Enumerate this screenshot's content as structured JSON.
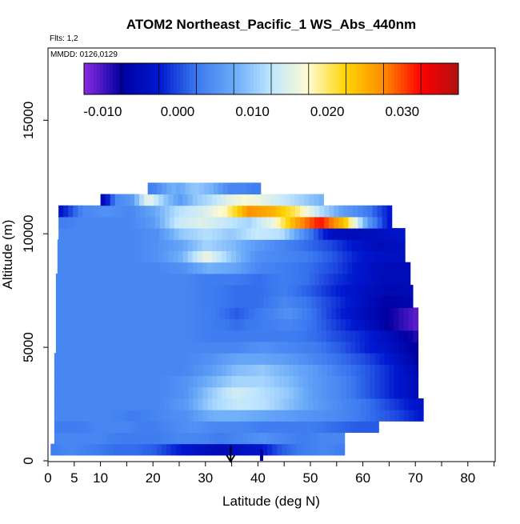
{
  "chart_data": {
    "type": "heatmap",
    "title": "ATOM2 Northeast_Pacific_1 WS_Abs_440nm",
    "flights_label": "Flts: 1,2",
    "dates_label": "MMDD: 0126,0129",
    "xlabel": "Latitude (deg N)",
    "ylabel": "Altitude (m)",
    "xlim": [
      0,
      85
    ],
    "ylim": [
      0,
      18000
    ],
    "x_ticks": [
      0,
      5,
      10,
      20,
      30,
      40,
      50,
      60,
      70,
      80
    ],
    "y_ticks": [
      0,
      5000,
      10000,
      15000
    ],
    "colorbar": {
      "range": [
        -0.0125,
        0.0375
      ],
      "ticks": [
        -0.01,
        0.0,
        0.01,
        0.02,
        0.03
      ],
      "tick_labels": [
        "-0.010",
        "0.000",
        "0.010",
        "0.020",
        "0.030"
      ],
      "colors": [
        "#8a2be2",
        "#0000a0",
        "#0018d0",
        "#3a78f0",
        "#6aaaf8",
        "#bfe6ff",
        "#fffbd0",
        "#ffd400",
        "#ff8c00",
        "#ff0000",
        "#b01010"
      ]
    },
    "rows": [
      {
        "y": 500,
        "x0": 0.5,
        "x1": 56.5,
        "v": [
          0.003,
          0.004,
          0.003,
          0.002,
          0.002,
          0.001,
          -0.002,
          -0.004,
          -0.005,
          -0.004,
          -0.003,
          0.001,
          0.003,
          0.004,
          0.003
        ]
      },
      {
        "y": 1000,
        "x0": 1.2,
        "x1": 56.5,
        "v": [
          0.004,
          0.004,
          0.004,
          0.003,
          0.003,
          0.003,
          0.004,
          0.004,
          0.003,
          0.004,
          0.005,
          0.004,
          0.003,
          0.004,
          0.004
        ]
      },
      {
        "y": 1500,
        "x0": 1.2,
        "x1": 63.0,
        "v": [
          0.003,
          0.003,
          0.004,
          0.004,
          0.003,
          0.004,
          0.005,
          0.004,
          0.004,
          0.003,
          0.003,
          0.003,
          0.002,
          0.001,
          0.001
        ]
      },
      {
        "y": 2000,
        "x0": 1.2,
        "x1": 71.5,
        "v": [
          0.004,
          0.004,
          0.004,
          0.003,
          0.004,
          0.005,
          0.008,
          0.008,
          0.007,
          0.006,
          0.005,
          0.004,
          0.002,
          0.0,
          -0.003
        ]
      },
      {
        "y": 2500,
        "x0": 1.2,
        "x1": 71.5,
        "v": [
          0.004,
          0.004,
          0.004,
          0.004,
          0.004,
          0.006,
          0.011,
          0.013,
          0.012,
          0.009,
          0.006,
          0.004,
          0.002,
          -0.001,
          -0.004
        ]
      },
      {
        "y": 3000,
        "x0": 1.2,
        "x1": 70.5,
        "v": [
          0.004,
          0.004,
          0.004,
          0.004,
          0.004,
          0.005,
          0.01,
          0.014,
          0.012,
          0.01,
          0.006,
          0.004,
          0.001,
          -0.002,
          -0.005
        ]
      },
      {
        "y": 3500,
        "x0": 1.2,
        "x1": 70.5,
        "v": [
          0.004,
          0.004,
          0.004,
          0.004,
          0.004,
          0.005,
          0.008,
          0.011,
          0.011,
          0.009,
          0.006,
          0.004,
          0.001,
          -0.002,
          -0.005
        ]
      },
      {
        "y": 4000,
        "x0": 1.2,
        "x1": 70.5,
        "v": [
          0.004,
          0.004,
          0.004,
          0.004,
          0.004,
          0.004,
          0.006,
          0.009,
          0.01,
          0.008,
          0.006,
          0.003,
          0.001,
          -0.002,
          -0.006
        ]
      },
      {
        "y": 4500,
        "x0": 1.2,
        "x1": 70.5,
        "v": [
          0.004,
          0.004,
          0.004,
          0.004,
          0.004,
          0.004,
          0.005,
          0.007,
          0.007,
          0.006,
          0.004,
          0.002,
          0.0,
          -0.003,
          -0.007
        ]
      },
      {
        "y": 5000,
        "x0": 1.5,
        "x1": 70.5,
        "v": [
          0.004,
          0.004,
          0.004,
          0.004,
          0.004,
          0.004,
          0.004,
          0.004,
          0.005,
          0.004,
          0.003,
          0.001,
          -0.002,
          -0.004,
          -0.008
        ]
      },
      {
        "y": 5500,
        "x0": 1.5,
        "x1": 70.5,
        "v": [
          0.004,
          0.004,
          0.004,
          0.004,
          0.004,
          0.004,
          0.003,
          0.003,
          0.003,
          0.003,
          0.002,
          0.0,
          -0.002,
          -0.005,
          -0.009
        ]
      },
      {
        "y": 6000,
        "x0": 1.5,
        "x1": 70.5,
        "v": [
          0.004,
          0.004,
          0.004,
          0.004,
          0.004,
          0.004,
          0.003,
          0.002,
          0.003,
          0.004,
          0.002,
          -0.001,
          -0.004,
          -0.008,
          -0.011
        ]
      },
      {
        "y": 6500,
        "x0": 1.5,
        "x1": 70.5,
        "v": [
          0.004,
          0.004,
          0.004,
          0.004,
          0.004,
          0.004,
          0.003,
          0.001,
          0.003,
          0.005,
          0.002,
          -0.002,
          -0.005,
          -0.008,
          -0.011
        ]
      },
      {
        "y": 7000,
        "x0": 1.5,
        "x1": 69.5,
        "v": [
          0.004,
          0.004,
          0.004,
          0.004,
          0.004,
          0.004,
          0.003,
          0.002,
          0.002,
          0.004,
          0.002,
          -0.001,
          -0.004,
          -0.007,
          -0.006
        ]
      },
      {
        "y": 7500,
        "x0": 1.5,
        "x1": 69.5,
        "v": [
          0.004,
          0.004,
          0.004,
          0.004,
          0.004,
          0.004,
          0.003,
          0.002,
          0.002,
          0.003,
          0.001,
          -0.002,
          -0.004,
          -0.006,
          -0.005
        ]
      },
      {
        "y": 8000,
        "x0": 1.5,
        "x1": 69.0,
        "v": [
          0.004,
          0.004,
          0.004,
          0.004,
          0.004,
          0.004,
          0.003,
          0.003,
          0.002,
          0.003,
          0.002,
          -0.001,
          -0.003,
          -0.005,
          -0.005
        ]
      },
      {
        "y": 8500,
        "x0": 1.8,
        "x1": 69.0,
        "v": [
          0.004,
          0.004,
          0.004,
          0.004,
          0.004,
          0.005,
          0.008,
          0.007,
          0.004,
          0.003,
          0.002,
          0.0,
          -0.003,
          -0.005,
          -0.005
        ]
      },
      {
        "y": 9000,
        "x0": 1.8,
        "x1": 68.0,
        "v": [
          0.004,
          0.004,
          0.004,
          0.004,
          0.005,
          0.008,
          0.016,
          0.01,
          0.005,
          0.004,
          0.003,
          0.001,
          -0.002,
          -0.004,
          -0.004
        ]
      },
      {
        "y": 9500,
        "x0": 1.8,
        "x1": 68.0,
        "v": [
          0.004,
          0.004,
          0.004,
          0.004,
          0.005,
          0.007,
          0.011,
          0.009,
          0.006,
          0.004,
          0.002,
          0.0,
          -0.003,
          -0.005,
          -0.004
        ]
      },
      {
        "y": 10000,
        "x0": 2.0,
        "x1": 68.0,
        "v": [
          0.004,
          0.004,
          0.004,
          0.004,
          0.005,
          0.01,
          0.012,
          0.01,
          0.013,
          0.012,
          0.004,
          -0.004,
          -0.005,
          -0.004,
          -0.003
        ]
      },
      {
        "y": 10500,
        "x0": 2.0,
        "x1": 65.5,
        "v": [
          0.003,
          0.004,
          0.004,
          0.004,
          0.006,
          0.013,
          0.015,
          0.013,
          0.011,
          0.016,
          0.026,
          0.032,
          0.024,
          0.006,
          -0.004
        ]
      },
      {
        "y": 11000,
        "x0": 2.0,
        "x1": 65.5,
        "v": [
          -0.004,
          0.004,
          0.005,
          0.004,
          0.007,
          0.012,
          0.014,
          0.018,
          0.027,
          0.025,
          0.02,
          0.012,
          0.006,
          0.003,
          -0.003
        ]
      },
      {
        "y": 11500,
        "x0": 10.0,
        "x1": 52.5,
        "v": [
          -0.007,
          0.004,
          0.006,
          0.016,
          0.01,
          0.006,
          0.01,
          0.012,
          0.015,
          0.017,
          0.016,
          0.014,
          0.012,
          0.01,
          0.008
        ]
      },
      {
        "y": 12000,
        "x0": 19.0,
        "x1": 40.5,
        "v": [
          0.003,
          0.004,
          0.006,
          0.008,
          0.007,
          0.009,
          0.01,
          0.009,
          0.008,
          0.006,
          0.004,
          0.004,
          0.004,
          0.003,
          0.003
        ]
      }
    ],
    "markers": [
      {
        "type": "arrow",
        "x": 34.8
      },
      {
        "type": "bar",
        "x": 40.7
      }
    ]
  }
}
